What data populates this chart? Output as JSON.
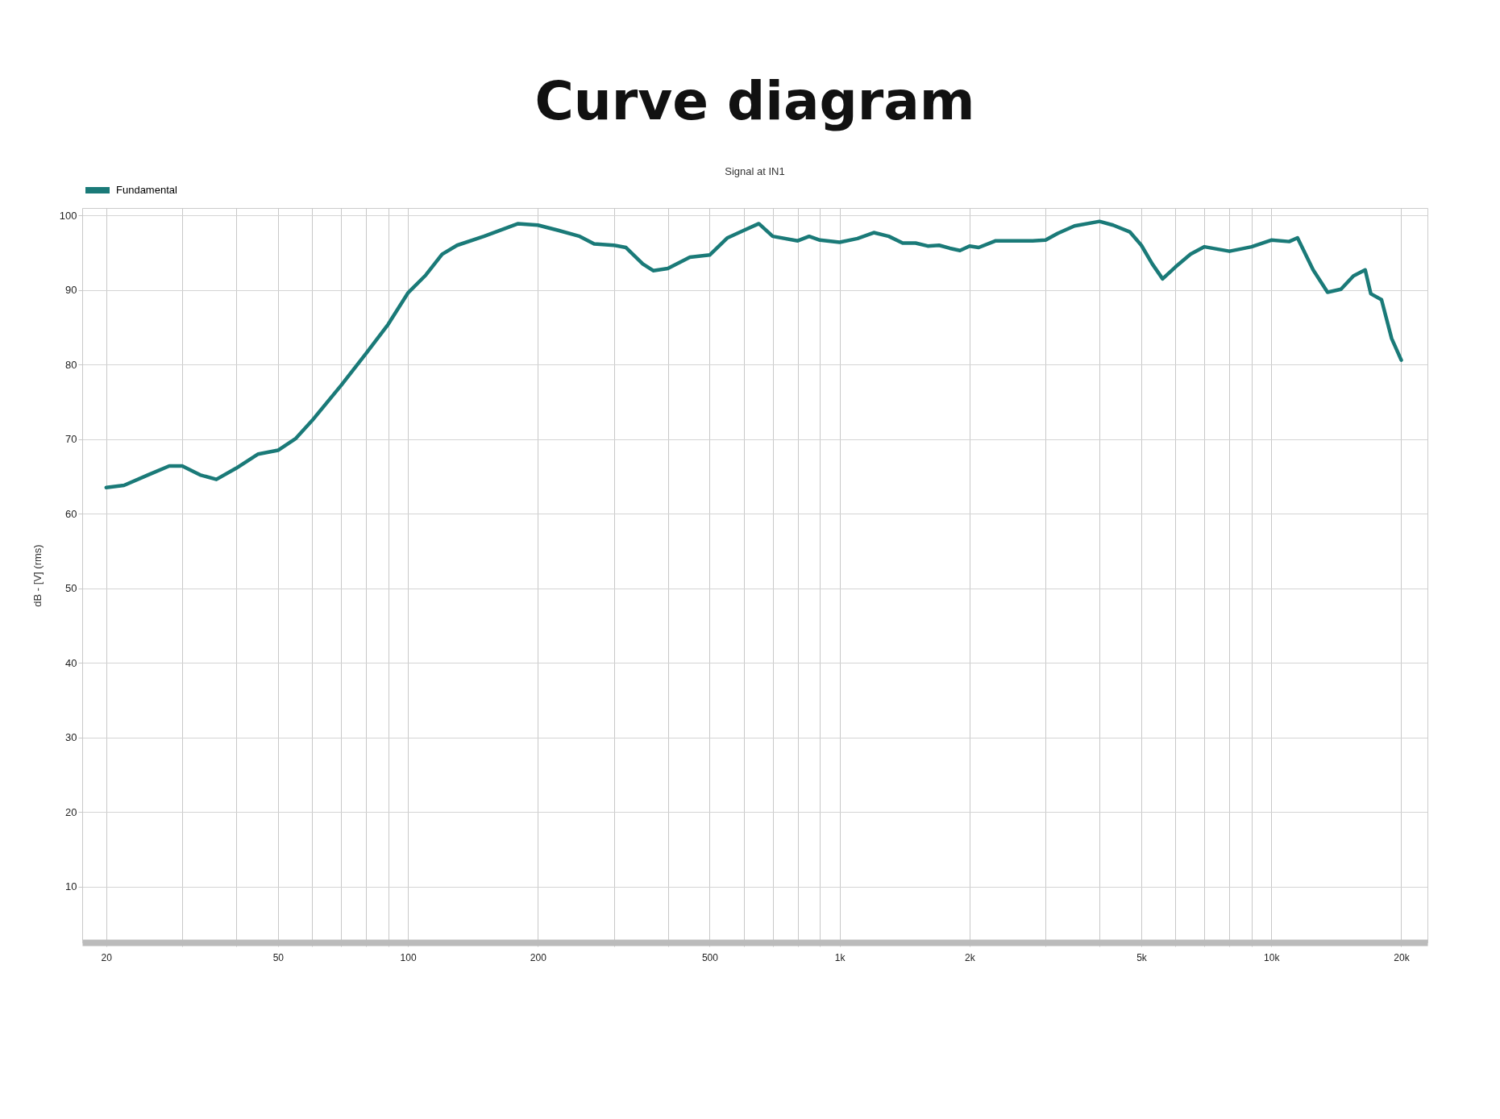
{
  "chart_data": {
    "type": "line",
    "title": "Curve diagram",
    "subtitle": "Signal at IN1",
    "ylabel": "dB - [V]  (rms)",
    "x": [
      20,
      22,
      25,
      28,
      30,
      33,
      36,
      40,
      45,
      50,
      55,
      60,
      70,
      80,
      90,
      100,
      110,
      120,
      130,
      150,
      180,
      200,
      223,
      250,
      270,
      300,
      320,
      350,
      370,
      400,
      450,
      500,
      550,
      600,
      650,
      700,
      800,
      850,
      900,
      1000,
      1100,
      1200,
      1300,
      1400,
      1500,
      1600,
      1700,
      1800,
      1900,
      2000,
      2100,
      2300,
      2600,
      2800,
      3000,
      3200,
      3500,
      4000,
      4300,
      4700,
      5000,
      5300,
      5600,
      6000,
      6500,
      7000,
      8000,
      9000,
      10000,
      11000,
      11500,
      12500,
      13500,
      14500,
      15500,
      16500,
      17000,
      18000,
      19000,
      20000
    ],
    "series": [
      {
        "name": "Fundamental",
        "color": "#1a7a78",
        "values": [
          63.5,
          63.8,
          65.2,
          66.4,
          66.4,
          65.2,
          64.6,
          66.1,
          68.0,
          68.5,
          70.1,
          72.5,
          77.2,
          81.5,
          85.4,
          89.6,
          92.0,
          94.8,
          96.0,
          97.2,
          98.9,
          98.7,
          98.0,
          97.2,
          96.2,
          96.0,
          95.7,
          93.5,
          92.6,
          92.9,
          94.4,
          94.7,
          97.0,
          98.0,
          98.9,
          97.2,
          96.6,
          97.2,
          96.7,
          96.4,
          96.9,
          97.7,
          97.2,
          96.3,
          96.3,
          95.9,
          96.0,
          95.6,
          95.3,
          95.9,
          95.7,
          96.6,
          96.6,
          96.6,
          96.7,
          97.6,
          98.6,
          99.2,
          98.7,
          97.8,
          96.0,
          93.5,
          91.5,
          93.1,
          94.8,
          95.8,
          95.2,
          95.8,
          96.7,
          96.5,
          97.0,
          92.7,
          89.7,
          90.1,
          91.9,
          92.7,
          89.5,
          88.7,
          83.5,
          80.6
        ]
      }
    ],
    "log": "x",
    "xlim": [
      17.6,
      23000
    ],
    "ylim": [
      2.5,
      101
    ],
    "xticks": [
      20,
      {
        "value": 30,
        "label": null
      },
      {
        "value": 40,
        "label": null
      },
      50,
      {
        "value": 60,
        "label": null
      },
      {
        "value": 70,
        "label": null
      },
      {
        "value": 80,
        "label": null
      },
      {
        "value": 90,
        "label": null
      },
      100,
      200,
      {
        "value": 300,
        "label": null
      },
      {
        "value": 400,
        "label": null
      },
      500,
      {
        "value": 600,
        "label": null
      },
      {
        "value": 700,
        "label": null
      },
      {
        "value": 800,
        "label": null
      },
      {
        "value": 900,
        "label": null
      },
      {
        "value": 1000,
        "label": "1k"
      },
      {
        "value": 2000,
        "label": "2k"
      },
      {
        "value": 3000,
        "label": null
      },
      {
        "value": 4000,
        "label": null
      },
      {
        "value": 5000,
        "label": "5k"
      },
      {
        "value": 6000,
        "label": null
      },
      {
        "value": 7000,
        "label": null
      },
      {
        "value": 8000,
        "label": null
      },
      {
        "value": 9000,
        "label": null
      },
      {
        "value": 10000,
        "label": "10k"
      },
      {
        "value": 20000,
        "label": "20k"
      }
    ],
    "yticks": [
      10,
      20,
      30,
      40,
      50,
      60,
      70,
      80,
      90,
      100
    ],
    "grid": true,
    "legend": "top left",
    "marker": "none",
    "line_style": "solid"
  }
}
